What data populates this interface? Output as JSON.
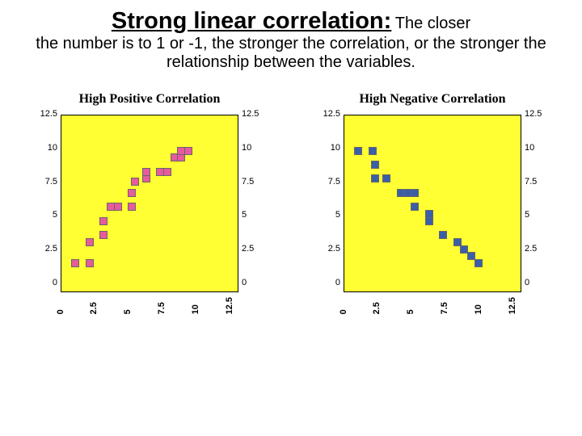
{
  "heading": {
    "title": "Strong linear correlation:",
    "subtitle_part1": "The closer",
    "subtitle_part2": "the number is to 1 or -1, the stronger the correlation, or the stronger the relationship between the variables."
  },
  "charts": [
    {
      "title": "High Positive Correlation",
      "type": "scatter",
      "background_color": "#ffff33",
      "marker_color": "#e85a9e",
      "marker_border": "#666666",
      "xlim": [
        0,
        12.5
      ],
      "ylim": [
        0,
        12.5
      ],
      "ticks": [
        "0",
        "2.5",
        "5",
        "7.5",
        "10",
        "12.5"
      ],
      "points": [
        {
          "x": 1.0,
          "y": 2.0
        },
        {
          "x": 2.0,
          "y": 2.0
        },
        {
          "x": 2.0,
          "y": 3.5
        },
        {
          "x": 3.0,
          "y": 4.0
        },
        {
          "x": 3.0,
          "y": 5.0
        },
        {
          "x": 3.5,
          "y": 6.0
        },
        {
          "x": 4.0,
          "y": 6.0
        },
        {
          "x": 5.0,
          "y": 6.0
        },
        {
          "x": 5.0,
          "y": 7.0
        },
        {
          "x": 5.2,
          "y": 7.8
        },
        {
          "x": 6.0,
          "y": 8.0
        },
        {
          "x": 6.0,
          "y": 8.5
        },
        {
          "x": 7.0,
          "y": 8.5
        },
        {
          "x": 7.5,
          "y": 8.5
        },
        {
          "x": 8.0,
          "y": 9.5
        },
        {
          "x": 8.5,
          "y": 9.5
        },
        {
          "x": 8.5,
          "y": 10.0
        },
        {
          "x": 9.0,
          "y": 10.0
        }
      ]
    },
    {
      "title": "High Negative Correlation",
      "type": "scatter",
      "background_color": "#ffff33",
      "marker_color": "#3a5fa8",
      "marker_border": "#666666",
      "xlim": [
        0,
        12.5
      ],
      "ylim": [
        0,
        12.5
      ],
      "ticks": [
        "0",
        "2.5",
        "5",
        "7.5",
        "10",
        "12.5"
      ],
      "points": [
        {
          "x": 1.0,
          "y": 10.0
        },
        {
          "x": 2.0,
          "y": 10.0
        },
        {
          "x": 2.2,
          "y": 9.0
        },
        {
          "x": 2.2,
          "y": 8.0
        },
        {
          "x": 3.0,
          "y": 8.0
        },
        {
          "x": 4.0,
          "y": 7.0
        },
        {
          "x": 4.5,
          "y": 7.0
        },
        {
          "x": 5.0,
          "y": 7.0
        },
        {
          "x": 5.0,
          "y": 6.0
        },
        {
          "x": 6.0,
          "y": 5.5
        },
        {
          "x": 6.0,
          "y": 5.0
        },
        {
          "x": 7.0,
          "y": 4.0
        },
        {
          "x": 8.0,
          "y": 3.5
        },
        {
          "x": 8.5,
          "y": 3.0
        },
        {
          "x": 9.0,
          "y": 2.5
        },
        {
          "x": 9.5,
          "y": 2.0
        }
      ]
    }
  ]
}
